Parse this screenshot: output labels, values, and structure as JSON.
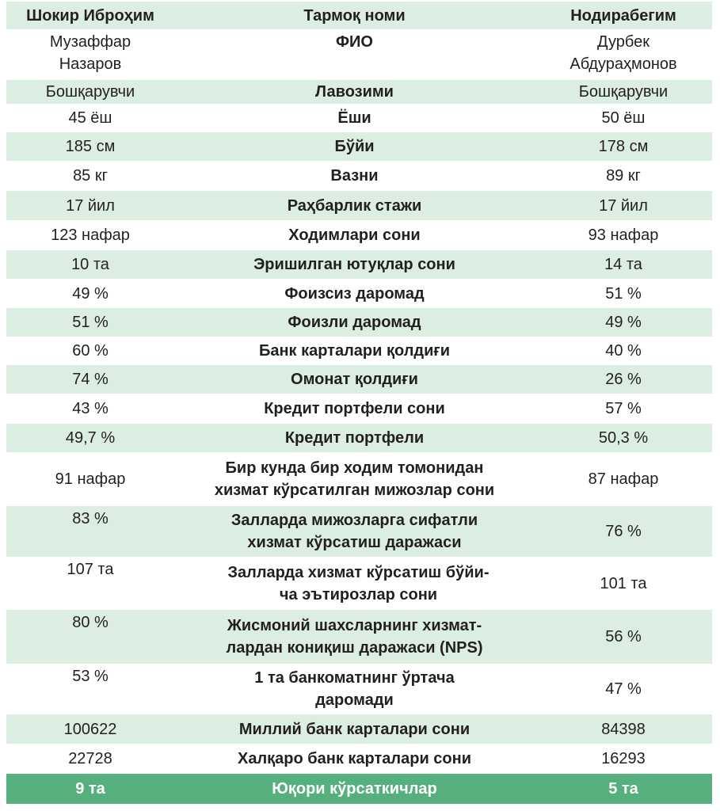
{
  "header": {
    "left": "Шокир Иброҳим",
    "middle": "Тармоқ номи",
    "right": "Нодирабегим"
  },
  "rows": [
    {
      "left": "Музаффар\nНазаров",
      "middle": "ФИО",
      "right": "Дурбек\nАбдураҳмонов"
    },
    {
      "left": "Бошқарувчи",
      "middle": "Лавозими",
      "right": "Бошқарувчи"
    },
    {
      "left": "45 ёш",
      "middle": "Ёши",
      "right": "50 ёш"
    },
    {
      "left": "185 см",
      "middle": "Бўйи",
      "right": "178 см"
    },
    {
      "left": "85 кг",
      "middle": "Вазни",
      "right": "89 кг"
    },
    {
      "left": "17 йил",
      "middle": "Раҳбарлик стажи",
      "right": "17 йил"
    },
    {
      "left": "123 нафар",
      "middle": "Ходимлари сони",
      "right": "93 нафар"
    },
    {
      "left": "10 та",
      "middle": "Эришилган ютуқлар сони",
      "right": "14 та"
    },
    {
      "left": "49 %",
      "middle": "Фоизсиз даромад",
      "right": "51 %"
    },
    {
      "left": "51 %",
      "middle": "Фоизли даромад",
      "right": "49 %"
    },
    {
      "left": "60 %",
      "middle": "Банк карталари қолдиғи",
      "right": "40 %"
    },
    {
      "left": "74 %",
      "middle": "Омонат қолдиғи",
      "right": "26 %"
    },
    {
      "left": "43 %",
      "middle": "Кредит портфели сони",
      "right": "57 %"
    },
    {
      "left": "49,7 %",
      "middle": "Кредит портфели",
      "right": "50,3 %"
    },
    {
      "left": "91 нафар",
      "middle": "Бир кунда бир ходим томонидан\nхизмат кўрсатилган мижозлар сони",
      "right": "87 нафар"
    },
    {
      "left": "83 %",
      "middle": "Залларда мижозларга сифатли\nхизмат кўрсатиш даражаси",
      "right": "76 %"
    },
    {
      "left": "107 та",
      "middle": "Залларда хизмат кўрсатиш бўйи-\nча эътирозлар сони",
      "right": "101 та"
    },
    {
      "left": "80 %",
      "middle": "Жисмоний шахсларнинг хизмат-\nлардан кониқиш даражаси (NPS)",
      "right": "56 %"
    },
    {
      "left": "53 %",
      "middle": "1 та банкоматнинг ўртача\nдаромади",
      "right": "47 %"
    },
    {
      "left": "100622",
      "middle": "Миллий банк карталари сони",
      "right": "84398"
    },
    {
      "left": "22728",
      "middle": "Халқаро банк карталари сони",
      "right": "16293"
    }
  ],
  "footer": {
    "left": "9 та",
    "middle": "Юқори кўрсаткичлар",
    "right": "5 та"
  },
  "colors": {
    "row_shade": "#dcede1",
    "footer_bg": "#56b07e",
    "text": "#231f20"
  }
}
